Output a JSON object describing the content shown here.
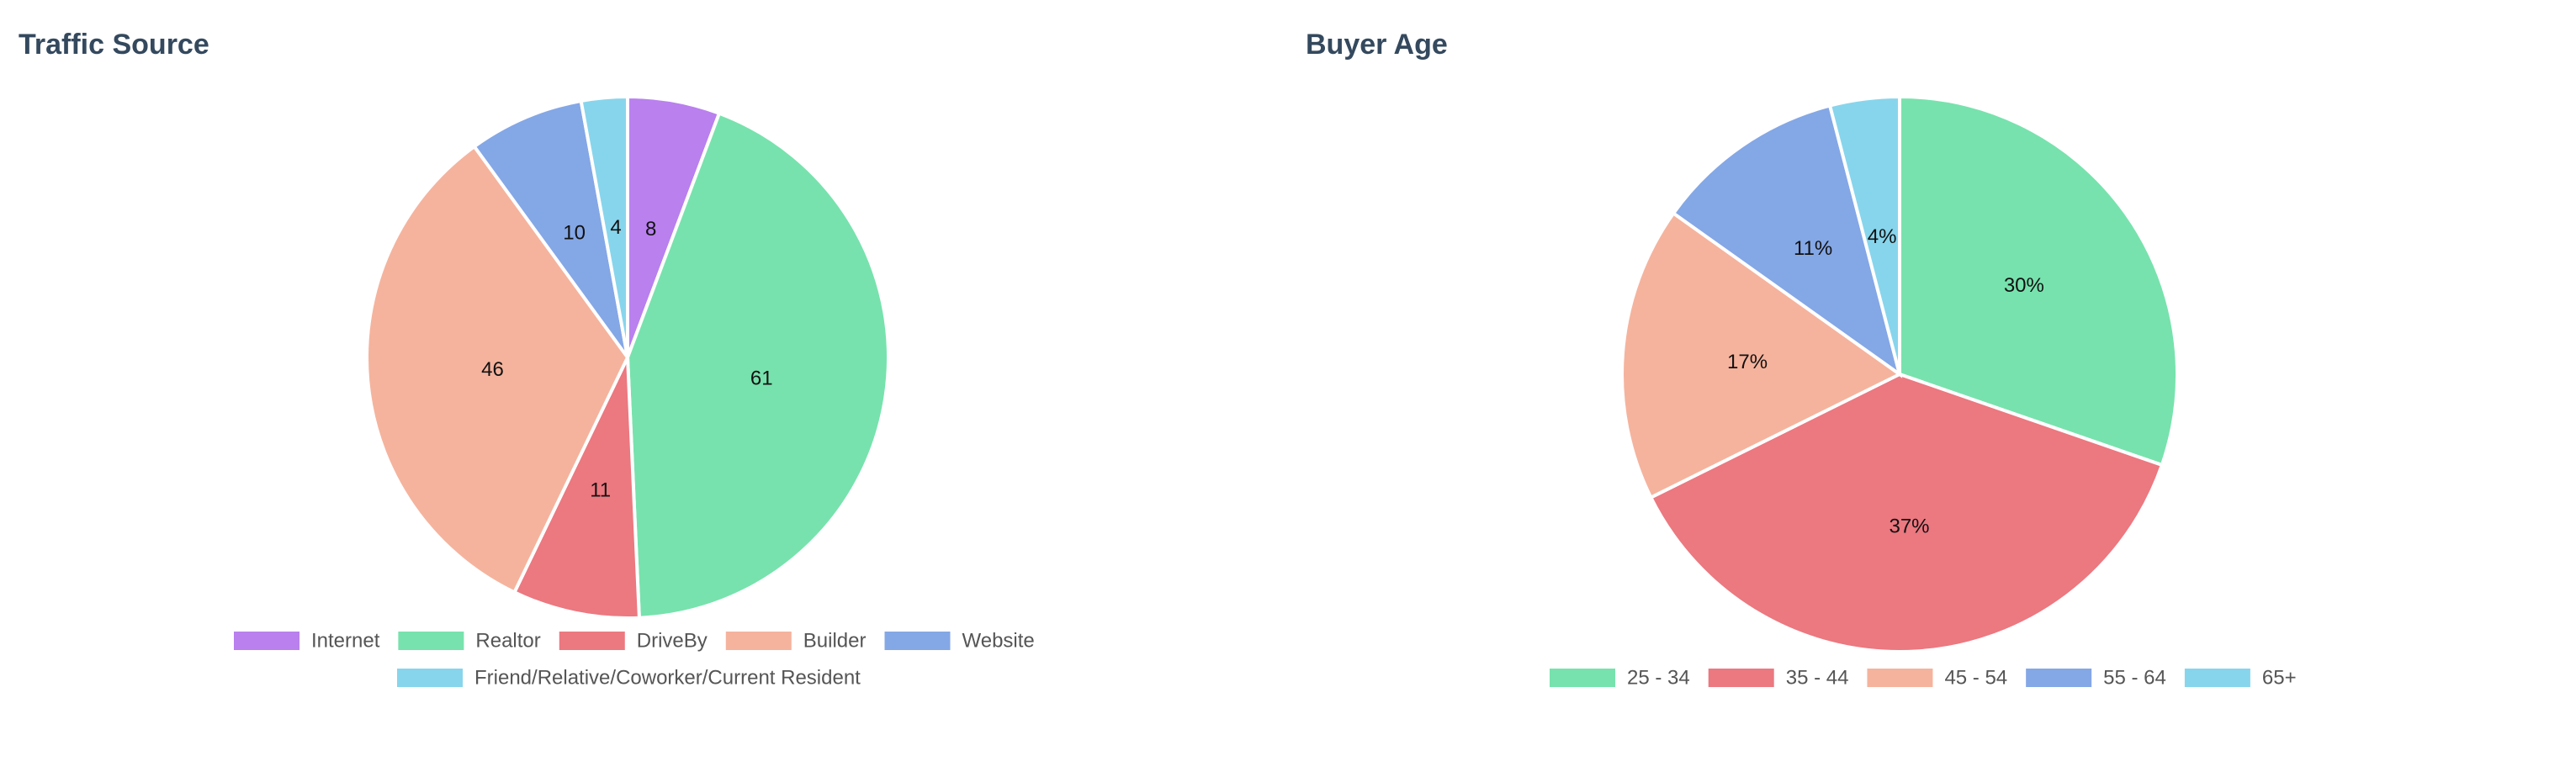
{
  "colors": {
    "internet": "#b980ee",
    "realtor": "#77e2ad",
    "driveby": "#ec7880",
    "builder": "#f5b39d",
    "website": "#84a7e6",
    "friend": "#87d5ec",
    "age_25_34": "#77e2ad",
    "age_35_44": "#ec7880",
    "age_45_54": "#f5b39d",
    "age_55_64": "#84a7e6",
    "age_65_plus": "#87d5ec"
  },
  "chart_data": [
    {
      "type": "pie",
      "title": "Traffic Source",
      "label_mode": "value",
      "start_angle_deg": 0,
      "legend_position": "bottom",
      "slices": [
        {
          "label": "Internet",
          "value": 8,
          "color": "#b980ee"
        },
        {
          "label": "Realtor",
          "value": 61,
          "color": "#77e2ad"
        },
        {
          "label": "DriveBy",
          "value": 11,
          "color": "#ec7880"
        },
        {
          "label": "Builder",
          "value": 46,
          "color": "#f5b39d"
        },
        {
          "label": "Website",
          "value": 10,
          "color": "#84a7e6"
        },
        {
          "label": "Friend/Relative/Coworker/Current Resident",
          "value": 4,
          "color": "#87d5ec"
        }
      ]
    },
    {
      "type": "pie",
      "title": "Buyer Age",
      "label_mode": "percent",
      "start_angle_deg": 0,
      "legend_position": "bottom",
      "slices": [
        {
          "label": "25 - 34",
          "value": 30,
          "display": "30%",
          "color": "#77e2ad"
        },
        {
          "label": "35 - 44",
          "value": 37,
          "display": "37%",
          "color": "#ec7880"
        },
        {
          "label": "45 - 54",
          "value": 17,
          "display": "17%",
          "color": "#f5b39d"
        },
        {
          "label": "55 - 64",
          "value": 11,
          "display": "11%",
          "color": "#84a7e6"
        },
        {
          "label": "65+",
          "value": 4,
          "display": "4%",
          "color": "#87d5ec"
        }
      ]
    }
  ]
}
